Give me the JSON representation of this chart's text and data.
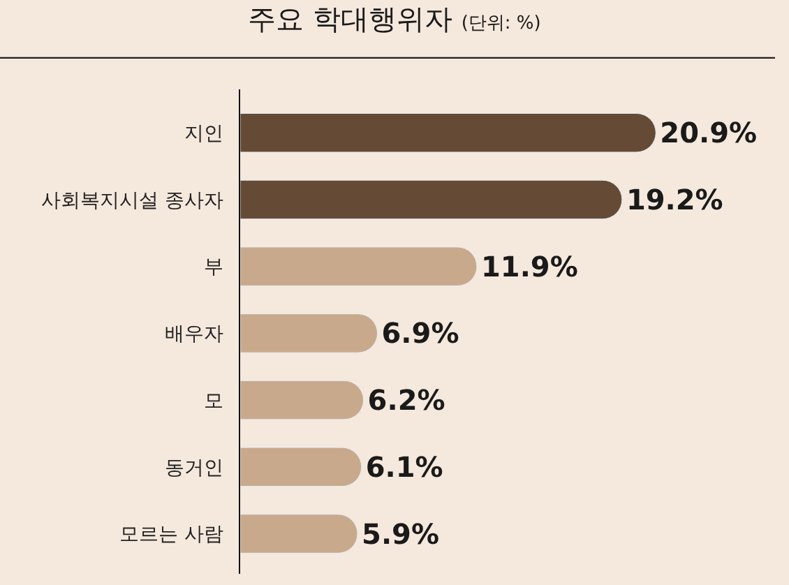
{
  "chart_data": {
    "type": "bar",
    "orientation": "horizontal",
    "title": "주요 학대행위자",
    "subtitle": "(단위: %)",
    "categories": [
      "지인",
      "사회복지시설 종사자",
      "부",
      "배우자",
      "모",
      "동거인",
      "모르는 사람"
    ],
    "values": [
      20.9,
      19.2,
      11.9,
      6.9,
      6.2,
      6.1,
      5.9
    ],
    "colors": [
      "#654b36",
      "#654b36",
      "#c9a98c",
      "#c9a98c",
      "#c9a98c",
      "#c9a98c",
      "#c9a98c"
    ],
    "value_labels": [
      "20.9%",
      "19.2%",
      "11.9%",
      "6.9%",
      "6.2%",
      "6.1%",
      "5.9%"
    ],
    "legend": false
  }
}
